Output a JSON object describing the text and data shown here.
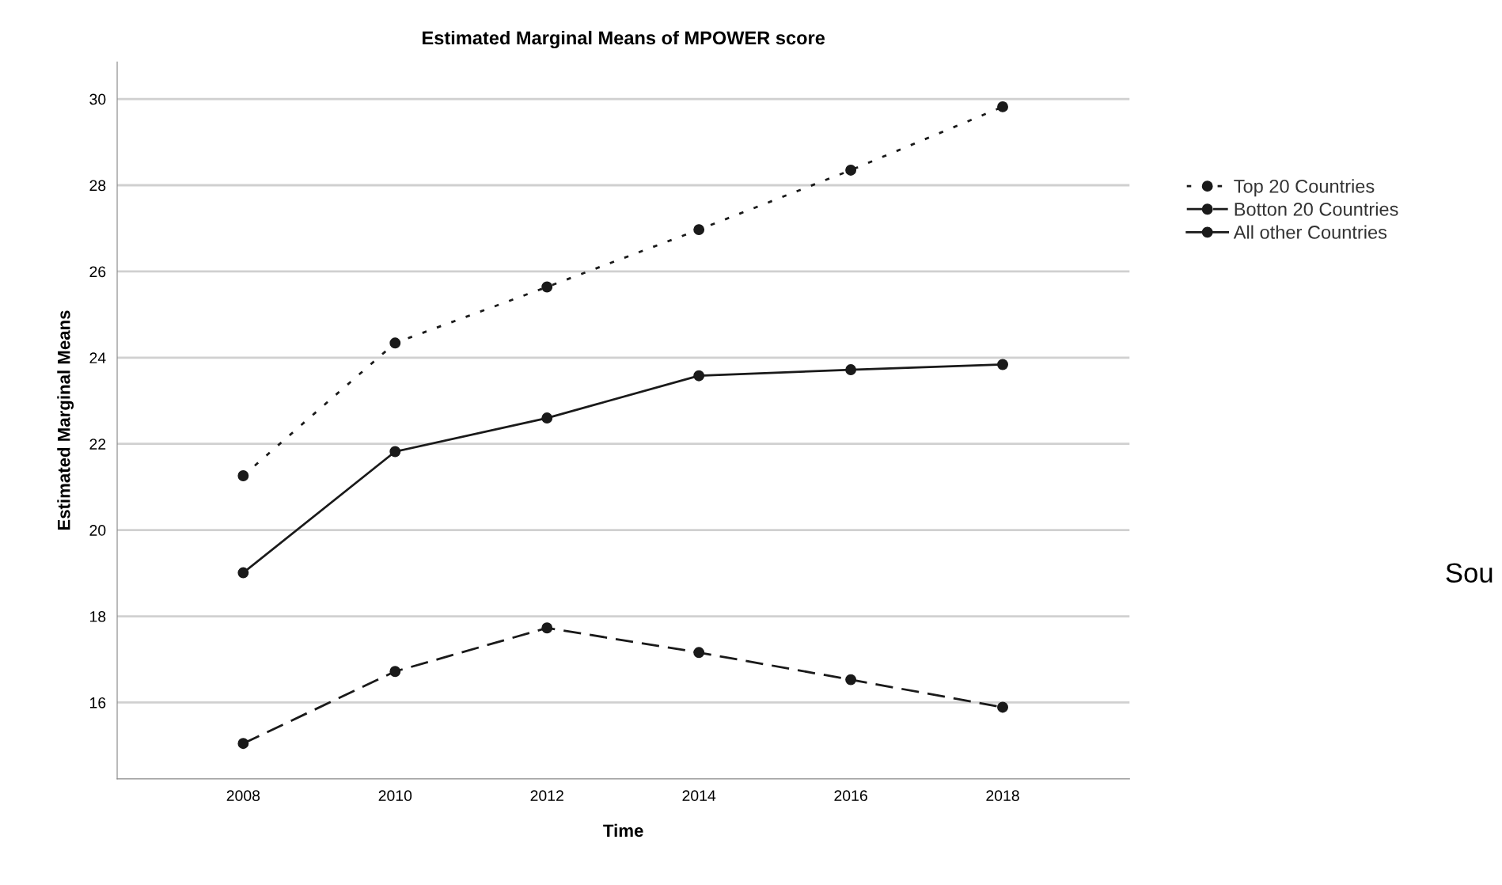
{
  "chart_data": {
    "type": "line",
    "title": "Estimated Marginal Means of MPOWER score",
    "xlabel": "Time",
    "ylabel": "Estimated Marginal Means",
    "x": [
      2008,
      2010,
      2012,
      2014,
      2016,
      2018
    ],
    "series": [
      {
        "name": "Top 20 Countries",
        "color": "#1a1a1a",
        "line_style": "dotted",
        "values": [
          21.26,
          24.34,
          25.64,
          26.97,
          28.35,
          29.82
        ]
      },
      {
        "name": "Botton 20 Countries",
        "color": "#1a1a1a",
        "line_style": "dashed",
        "values": [
          15.05,
          16.72,
          17.73,
          17.16,
          16.53,
          15.89
        ]
      },
      {
        "name": "All other Countries",
        "color": "#1a1a1a",
        "line_style": "solid",
        "values": [
          19.01,
          21.82,
          22.6,
          23.58,
          23.72,
          23.84
        ]
      }
    ],
    "xlim": [
      2006.34,
      2019.67
    ],
    "xticks": [
      2008,
      2010,
      2012,
      2014,
      2016,
      2018
    ],
    "ylim": [
      14.23,
      30.86
    ],
    "yticks": [
      16,
      18,
      20,
      22,
      24,
      26,
      28,
      30
    ],
    "grid": "y",
    "marker": "circle",
    "legend": "top right",
    "annotations": [
      "Sou"
    ]
  }
}
